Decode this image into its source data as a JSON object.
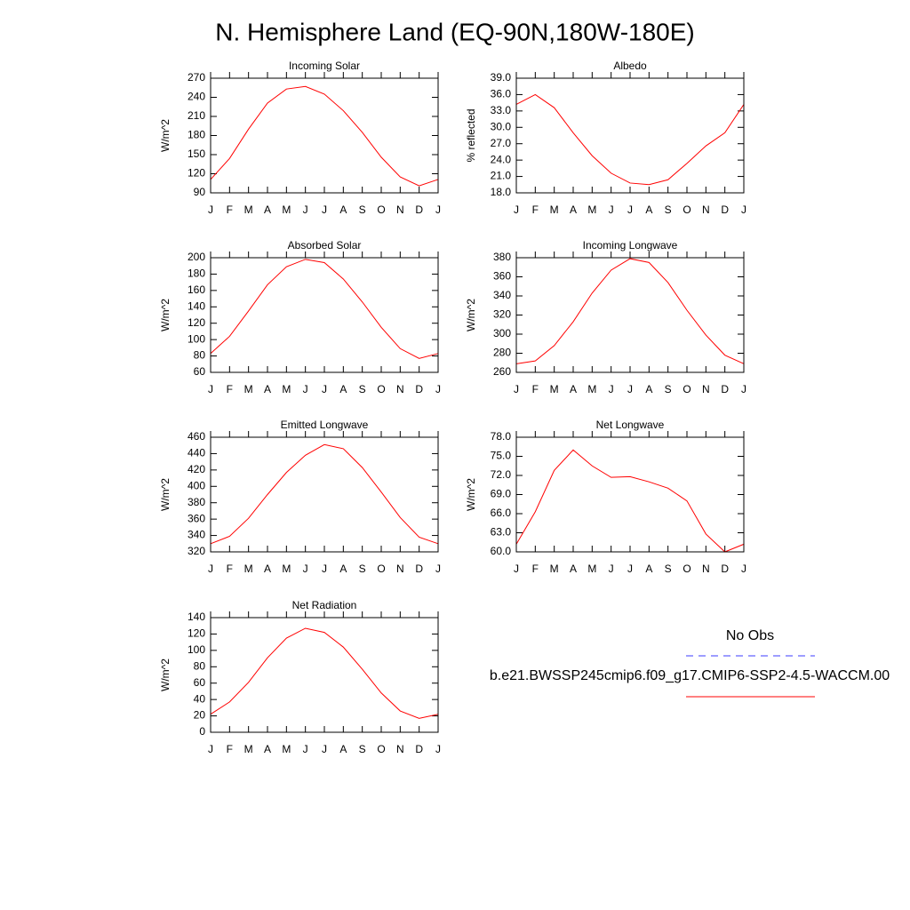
{
  "title": "N. Hemisphere Land (EQ-90N,180W-180E)",
  "legend": [
    {
      "name": "No Obs",
      "color": "#3b3bff",
      "dash": true
    },
    {
      "name": "b.e21.BWSSP245cmip6.f09_g17.CMIP6-SSP2-4.5-WACCM.00",
      "color": "#ff0000",
      "dash": false
    }
  ],
  "chart_data": [
    {
      "type": "line",
      "title": "Incoming Solar",
      "ylabel": "W/m^2",
      "categories": [
        "J",
        "F",
        "M",
        "A",
        "M",
        "J",
        "J",
        "A",
        "S",
        "O",
        "N",
        "D",
        "J"
      ],
      "series": [
        {
          "color": "#ff0000",
          "values": [
            111,
            144,
            190,
            231,
            253,
            257,
            245,
            219,
            185,
            146,
            115,
            101,
            111
          ]
        }
      ],
      "ylim": [
        90,
        270
      ],
      "yticks": [
        90,
        120,
        150,
        180,
        210,
        240,
        270
      ]
    },
    {
      "type": "line",
      "title": "Albedo",
      "ylabel": "% reflected",
      "categories": [
        "J",
        "F",
        "M",
        "A",
        "M",
        "J",
        "J",
        "A",
        "S",
        "O",
        "N",
        "D",
        "J"
      ],
      "series": [
        {
          "color": "#ff0000",
          "values": [
            34.2,
            36.0,
            33.6,
            29.0,
            24.8,
            21.6,
            19.8,
            19.5,
            20.4,
            23.4,
            26.6,
            29.0,
            34.2
          ]
        }
      ],
      "ylim": [
        18,
        39
      ],
      "yticks": [
        {
          "value": 18,
          "label": "18.0"
        },
        {
          "value": 21,
          "label": "21.0"
        },
        {
          "value": 24,
          "label": "24.0"
        },
        {
          "value": 27,
          "label": "27.0"
        },
        {
          "value": 30,
          "label": "30.0"
        },
        {
          "value": 33,
          "label": "33.0"
        },
        {
          "value": 36,
          "label": "36.0"
        },
        {
          "value": 39,
          "label": "39.0"
        }
      ]
    },
    {
      "type": "line",
      "title": "Absorbed Solar",
      "ylabel": "W/m^2",
      "categories": [
        "J",
        "F",
        "M",
        "A",
        "M",
        "J",
        "J",
        "A",
        "S",
        "O",
        "N",
        "D",
        "J"
      ],
      "series": [
        {
          "color": "#ff0000",
          "values": [
            83,
            104,
            135,
            167,
            189,
            198,
            194,
            174,
            146,
            115,
            89,
            77,
            83
          ]
        }
      ],
      "ylim": [
        60,
        200
      ],
      "yticks": [
        60,
        80,
        100,
        120,
        140,
        160,
        180,
        200
      ]
    },
    {
      "type": "line",
      "title": "Incoming Longwave",
      "ylabel": "W/m^2",
      "categories": [
        "J",
        "F",
        "M",
        "A",
        "M",
        "J",
        "J",
        "A",
        "S",
        "O",
        "N",
        "D",
        "J"
      ],
      "series": [
        {
          "color": "#ff0000",
          "values": [
            269,
            272,
            288,
            313,
            343,
            367,
            379,
            375,
            354,
            325,
            299,
            278,
            269
          ]
        }
      ],
      "ylim": [
        260,
        380
      ],
      "yticks": [
        260,
        280,
        300,
        320,
        340,
        360,
        380
      ]
    },
    {
      "type": "line",
      "title": "Emitted Longwave",
      "ylabel": "W/m^2",
      "categories": [
        "J",
        "F",
        "M",
        "A",
        "M",
        "J",
        "J",
        "A",
        "S",
        "O",
        "N",
        "D",
        "J"
      ],
      "series": [
        {
          "color": "#ff0000",
          "values": [
            330,
            339,
            361,
            390,
            417,
            438,
            451,
            446,
            423,
            393,
            362,
            338,
            330
          ]
        }
      ],
      "ylim": [
        320,
        460
      ],
      "yticks": [
        320,
        340,
        360,
        380,
        400,
        420,
        440,
        460
      ]
    },
    {
      "type": "line",
      "title": "Net Longwave",
      "ylabel": "W/m^2",
      "categories": [
        "J",
        "F",
        "M",
        "A",
        "M",
        "J",
        "J",
        "A",
        "S",
        "O",
        "N",
        "D",
        "J"
      ],
      "series": [
        {
          "color": "#ff0000",
          "values": [
            61.2,
            66.3,
            72.8,
            76.0,
            73.5,
            71.7,
            71.8,
            71.0,
            70.0,
            68.0,
            62.8,
            60.0,
            61.2
          ]
        }
      ],
      "ylim": [
        60,
        78
      ],
      "yticks": [
        {
          "value": 60,
          "label": "60.0"
        },
        {
          "value": 63,
          "label": "63.0"
        },
        {
          "value": 66,
          "label": "66.0"
        },
        {
          "value": 69,
          "label": "69.0"
        },
        {
          "value": 72,
          "label": "72.0"
        },
        {
          "value": 75,
          "label": "75.0"
        },
        {
          "value": 78,
          "label": "78.0"
        }
      ]
    },
    {
      "type": "line",
      "title": "Net Radiation",
      "ylabel": "W/m^2",
      "categories": [
        "J",
        "F",
        "M",
        "A",
        "M",
        "J",
        "J",
        "A",
        "S",
        "O",
        "N",
        "D",
        "J"
      ],
      "series": [
        {
          "color": "#ff0000",
          "values": [
            22,
            37,
            61,
            91,
            115,
            127,
            122,
            104,
            77,
            48,
            26,
            17,
            22
          ]
        }
      ],
      "ylim": [
        0,
        140
      ],
      "yticks": [
        0,
        20,
        40,
        60,
        80,
        100,
        120,
        140
      ]
    }
  ]
}
